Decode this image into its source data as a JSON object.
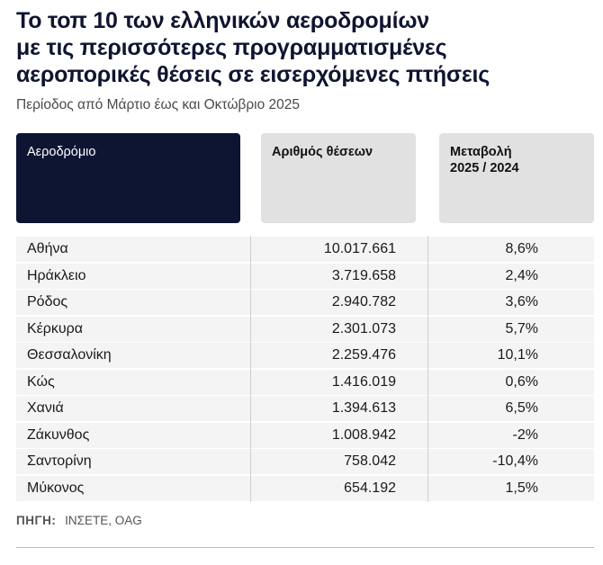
{
  "title": {
    "lines": [
      "Το τοπ 10 των ελληνικών αεροδρομίων",
      "με τις περισσότερες προγραμματισμένες",
      "αεροπορικές θέσεις σε εισερχόμενες πτήσεις"
    ]
  },
  "subtitle": "Περίοδος από Μάρτιο έως και Οκτώβριο 2025",
  "table": {
    "headers": {
      "airport": "Αεροδρόμιο",
      "seats": "Αριθμός θέσεων",
      "change_line1": "Μεταβολή",
      "change_line2": "2025 / 2024"
    },
    "rows": [
      {
        "airport": "Αθήνα",
        "seats": "10.017.661",
        "change": "8,6%"
      },
      {
        "airport": "Ηράκλειο",
        "seats": "3.719.658",
        "change": "2,4%"
      },
      {
        "airport": "Ρόδος",
        "seats": "2.940.782",
        "change": "3,6%"
      },
      {
        "airport": "Κέρκυρα",
        "seats": "2.301.073",
        "change": "5,7%"
      },
      {
        "airport": "Θεσσαλονίκη",
        "seats": "2.259.476",
        "change": "10,1%"
      },
      {
        "airport": "Κώς",
        "seats": "1.416.019",
        "change": "0,6%"
      },
      {
        "airport": "Χανιά",
        "seats": "1.394.613",
        "change": "6,5%"
      },
      {
        "airport": "Ζάκυνθος",
        "seats": "1.008.942",
        "change": "-2%"
      },
      {
        "airport": "Σαντορίνη",
        "seats": "758.042",
        "change": "-10,4%"
      },
      {
        "airport": "Μύκονος",
        "seats": "654.192",
        "change": "1,5%"
      }
    ]
  },
  "source": {
    "label": "ΠΗΓΗ:",
    "text": "ΙΝΣΕΤΕ, OAG"
  },
  "colors": {
    "title": "#0f1430",
    "header_dark": "#0d1533",
    "header_light": "#e1e1e1",
    "row_bg": "#f4f4f4"
  }
}
